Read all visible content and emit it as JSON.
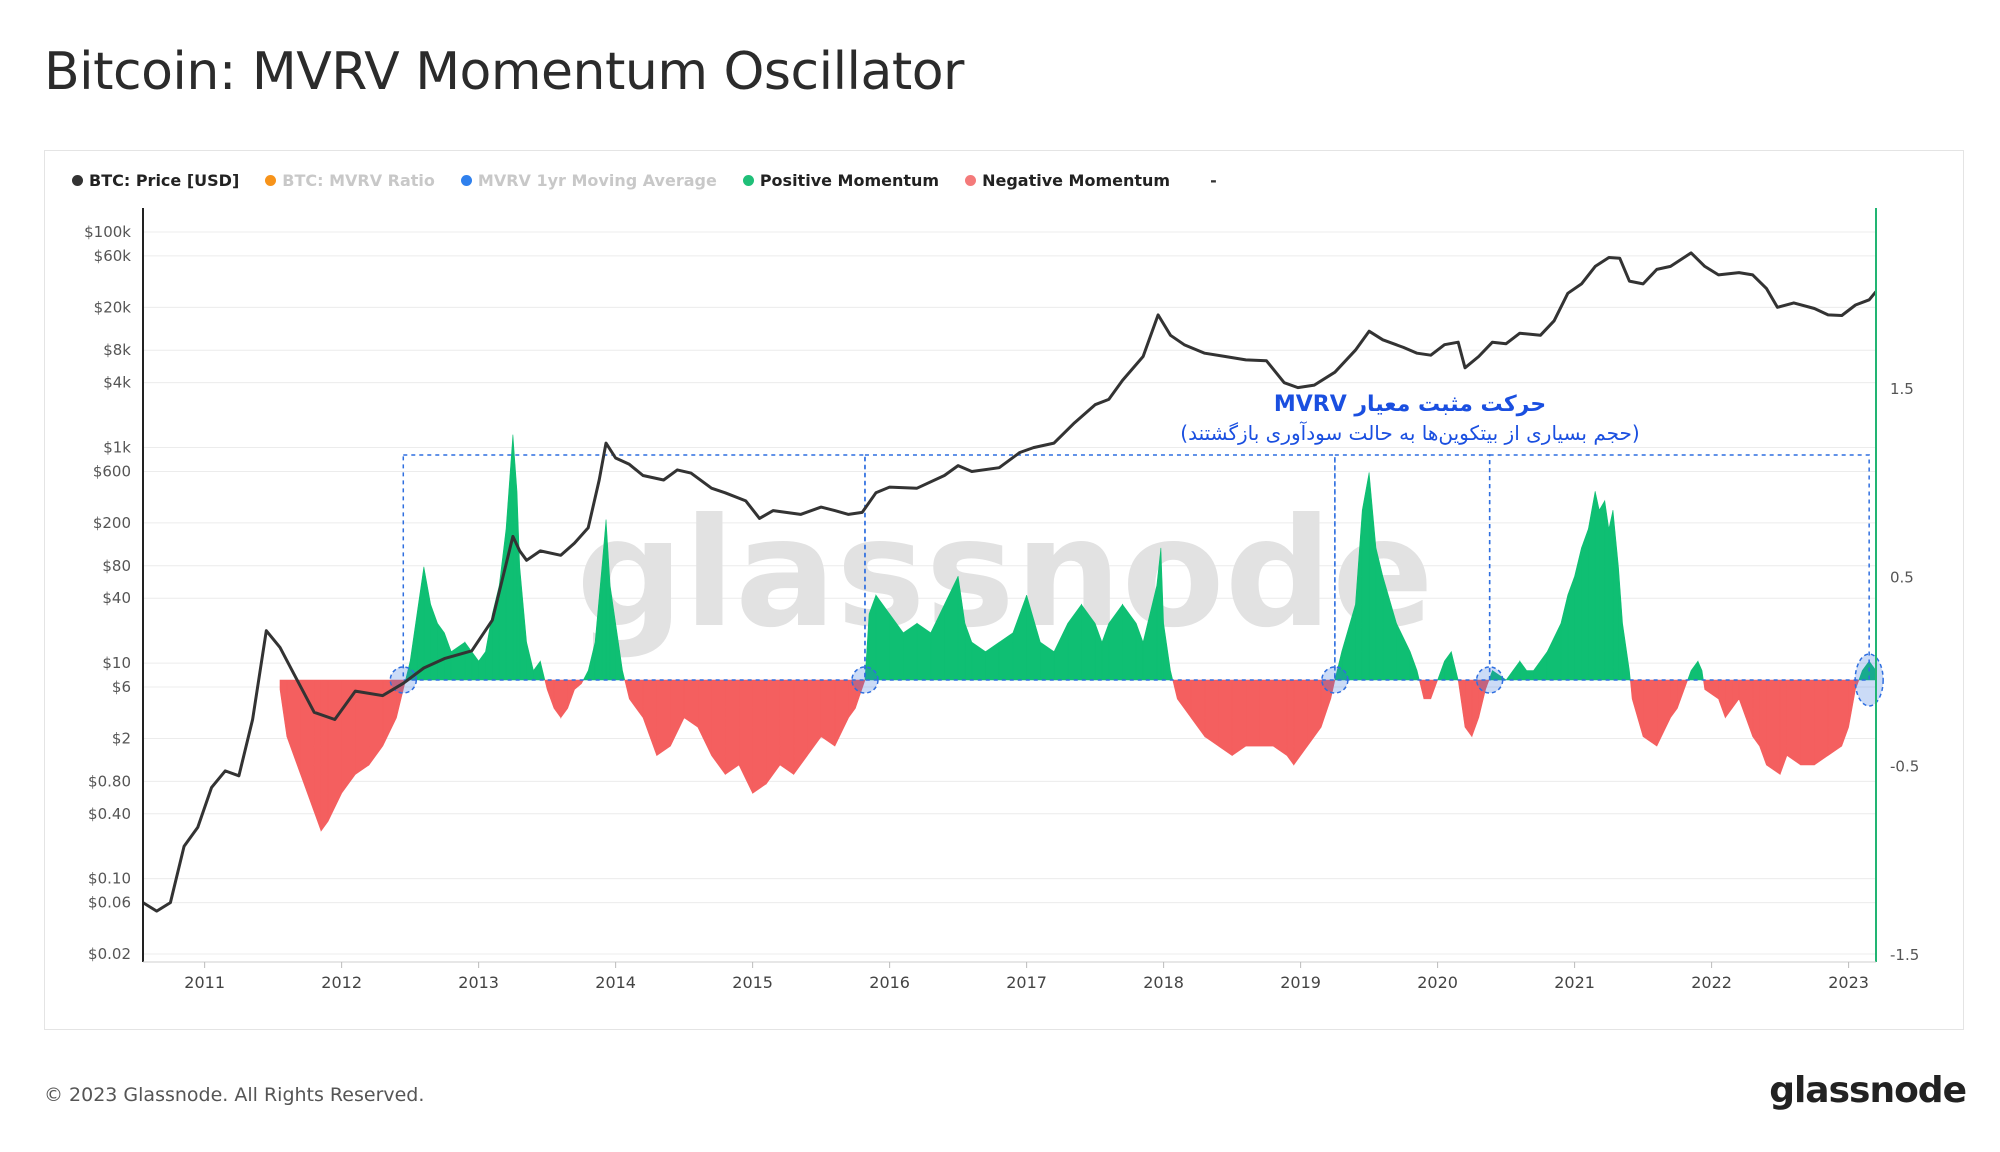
{
  "title": "Bitcoin: MVRV Momentum Oscillator",
  "footer": {
    "copyright": "© 2023 Glassnode. All Rights Reserved.",
    "logo": "glassnode"
  },
  "watermark": "glassnode",
  "annotation": {
    "title": "حرکت مثبت معیار MVRV",
    "subtitle": "(حجم بسیاری از بیتکوین‌ها به حالت سودآوری بازگشتند)"
  },
  "legend": [
    {
      "label": "BTC: Price [USD]",
      "color": "#333333",
      "text_color": "#222222"
    },
    {
      "label": "BTC: MVRV Ratio",
      "color": "#f7931a",
      "text_color": "#c8c8c8"
    },
    {
      "label": "MVRV 1yr Moving Average",
      "color": "#2f80ed",
      "text_color": "#c8c8c8"
    },
    {
      "label": "Positive Momentum",
      "color": "#1fbf78",
      "text_color": "#222222"
    },
    {
      "label": "Negative Momentum",
      "color": "#f47a7a",
      "text_color": "#222222"
    }
  ],
  "legend_trailing": "-",
  "colors": {
    "price": "#333333",
    "positive": "#0fbf73",
    "negative": "#f45f5f",
    "highlight": "#2f6fe0",
    "right_axis_line": "#22b573"
  },
  "chart_data": {
    "type": "area",
    "x_axis": {
      "ticks": [
        "2011",
        "2012",
        "2013",
        "2014",
        "2015",
        "2016",
        "2017",
        "2018",
        "2019",
        "2020",
        "2021",
        "2022",
        "2023"
      ],
      "range": [
        2010.55,
        2023.2
      ]
    },
    "left_axis": {
      "scale": "log",
      "ticks": [
        "$100k",
        "$60k",
        "$20k",
        "$8k",
        "$4k",
        "$1k",
        "$600",
        "$200",
        "$80",
        "$40",
        "$10",
        "$6",
        "$2",
        "$0.80",
        "$0.40",
        "$0.10",
        "$0.06",
        "$0.02"
      ],
      "values": [
        100000,
        60000,
        20000,
        8000,
        4000,
        1000,
        600,
        200,
        80,
        40,
        10,
        6,
        2,
        0.8,
        0.4,
        0.1,
        0.06,
        0.02
      ],
      "range": [
        0.02,
        100000
      ]
    },
    "right_axis": {
      "scale": "linear",
      "ticks": [
        "1.5",
        "0.5",
        "-0.5",
        "-1.5"
      ],
      "values": [
        1.5,
        0.5,
        -0.5,
        -1.5
      ],
      "range": [
        -1.5,
        2.5
      ]
    },
    "price_series": {
      "name": "BTC: Price [USD]",
      "points": [
        [
          2010.55,
          0.06
        ],
        [
          2010.65,
          0.05
        ],
        [
          2010.75,
          0.06
        ],
        [
          2010.85,
          0.2
        ],
        [
          2010.95,
          0.3
        ],
        [
          2011.05,
          0.7
        ],
        [
          2011.15,
          1.0
        ],
        [
          2011.25,
          0.9
        ],
        [
          2011.35,
          3.0
        ],
        [
          2011.45,
          20
        ],
        [
          2011.55,
          14
        ],
        [
          2011.65,
          8
        ],
        [
          2011.8,
          3.5
        ],
        [
          2011.95,
          3.0
        ],
        [
          2012.1,
          5.5
        ],
        [
          2012.3,
          5
        ],
        [
          2012.45,
          6.5
        ],
        [
          2012.6,
          9
        ],
        [
          2012.75,
          11
        ],
        [
          2012.95,
          13
        ],
        [
          2013.1,
          25
        ],
        [
          2013.25,
          150
        ],
        [
          2013.3,
          110
        ],
        [
          2013.35,
          90
        ],
        [
          2013.45,
          110
        ],
        [
          2013.6,
          100
        ],
        [
          2013.7,
          130
        ],
        [
          2013.8,
          180
        ],
        [
          2013.88,
          500
        ],
        [
          2013.93,
          1100
        ],
        [
          2014.0,
          800
        ],
        [
          2014.1,
          700
        ],
        [
          2014.2,
          550
        ],
        [
          2014.35,
          500
        ],
        [
          2014.45,
          620
        ],
        [
          2014.55,
          580
        ],
        [
          2014.7,
          420
        ],
        [
          2014.8,
          380
        ],
        [
          2014.95,
          320
        ],
        [
          2015.05,
          220
        ],
        [
          2015.15,
          260
        ],
        [
          2015.35,
          240
        ],
        [
          2015.5,
          280
        ],
        [
          2015.6,
          260
        ],
        [
          2015.7,
          240
        ],
        [
          2015.8,
          250
        ],
        [
          2015.9,
          380
        ],
        [
          2016.0,
          430
        ],
        [
          2016.2,
          420
        ],
        [
          2016.4,
          550
        ],
        [
          2016.5,
          680
        ],
        [
          2016.6,
          600
        ],
        [
          2016.8,
          650
        ],
        [
          2016.95,
          900
        ],
        [
          2017.05,
          1000
        ],
        [
          2017.2,
          1100
        ],
        [
          2017.35,
          1700
        ],
        [
          2017.5,
          2500
        ],
        [
          2017.6,
          2800
        ],
        [
          2017.7,
          4200
        ],
        [
          2017.85,
          7000
        ],
        [
          2017.96,
          17000
        ],
        [
          2018.05,
          11000
        ],
        [
          2018.15,
          9000
        ],
        [
          2018.3,
          7500
        ],
        [
          2018.45,
          7000
        ],
        [
          2018.6,
          6500
        ],
        [
          2018.75,
          6400
        ],
        [
          2018.88,
          4000
        ],
        [
          2018.98,
          3600
        ],
        [
          2019.1,
          3800
        ],
        [
          2019.25,
          5000
        ],
        [
          2019.4,
          8000
        ],
        [
          2019.5,
          12000
        ],
        [
          2019.6,
          10000
        ],
        [
          2019.75,
          8500
        ],
        [
          2019.85,
          7500
        ],
        [
          2019.95,
          7200
        ],
        [
          2020.05,
          9000
        ],
        [
          2020.15,
          9500
        ],
        [
          2020.2,
          5500
        ],
        [
          2020.3,
          7000
        ],
        [
          2020.4,
          9500
        ],
        [
          2020.5,
          9200
        ],
        [
          2020.6,
          11500
        ],
        [
          2020.75,
          11000
        ],
        [
          2020.85,
          15000
        ],
        [
          2020.95,
          27000
        ],
        [
          2021.05,
          33000
        ],
        [
          2021.15,
          48000
        ],
        [
          2021.25,
          58000
        ],
        [
          2021.33,
          57000
        ],
        [
          2021.4,
          35000
        ],
        [
          2021.5,
          33000
        ],
        [
          2021.6,
          45000
        ],
        [
          2021.7,
          48000
        ],
        [
          2021.85,
          64000
        ],
        [
          2021.95,
          48000
        ],
        [
          2022.05,
          40000
        ],
        [
          2022.2,
          42000
        ],
        [
          2022.3,
          40000
        ],
        [
          2022.4,
          30000
        ],
        [
          2022.48,
          20000
        ],
        [
          2022.6,
          22000
        ],
        [
          2022.75,
          19500
        ],
        [
          2022.85,
          17000
        ],
        [
          2022.95,
          16800
        ],
        [
          2023.05,
          21000
        ],
        [
          2023.15,
          23500
        ],
        [
          2023.2,
          28000
        ]
      ]
    },
    "momentum_series": {
      "name": "MVRV Momentum",
      "points": [
        [
          2011.55,
          -0.05
        ],
        [
          2011.6,
          -0.3
        ],
        [
          2011.7,
          -0.5
        ],
        [
          2011.8,
          -0.7
        ],
        [
          2011.85,
          -0.8
        ],
        [
          2011.9,
          -0.75
        ],
        [
          2012.0,
          -0.6
        ],
        [
          2012.1,
          -0.5
        ],
        [
          2012.2,
          -0.45
        ],
        [
          2012.3,
          -0.35
        ],
        [
          2012.4,
          -0.2
        ],
        [
          2012.45,
          -0.05
        ],
        [
          2012.5,
          0.1
        ],
        [
          2012.55,
          0.35
        ],
        [
          2012.6,
          0.6
        ],
        [
          2012.65,
          0.4
        ],
        [
          2012.7,
          0.3
        ],
        [
          2012.75,
          0.25
        ],
        [
          2012.8,
          0.15
        ],
        [
          2012.9,
          0.2
        ],
        [
          2012.95,
          0.15
        ],
        [
          2013.0,
          0.1
        ],
        [
          2013.05,
          0.15
        ],
        [
          2013.1,
          0.35
        ],
        [
          2013.15,
          0.5
        ],
        [
          2013.2,
          0.8
        ],
        [
          2013.25,
          1.3
        ],
        [
          2013.28,
          1.0
        ],
        [
          2013.3,
          0.6
        ],
        [
          2013.35,
          0.2
        ],
        [
          2013.4,
          0.05
        ],
        [
          2013.45,
          0.1
        ],
        [
          2013.5,
          -0.05
        ],
        [
          2013.55,
          -0.15
        ],
        [
          2013.6,
          -0.2
        ],
        [
          2013.65,
          -0.15
        ],
        [
          2013.7,
          -0.05
        ],
        [
          2013.75,
          -0.02
        ],
        [
          2013.8,
          0.05
        ],
        [
          2013.85,
          0.2
        ],
        [
          2013.9,
          0.6
        ],
        [
          2013.93,
          0.85
        ],
        [
          2013.96,
          0.5
        ],
        [
          2014.0,
          0.3
        ],
        [
          2014.05,
          0.05
        ],
        [
          2014.1,
          -0.1
        ],
        [
          2014.2,
          -0.2
        ],
        [
          2014.3,
          -0.4
        ],
        [
          2014.4,
          -0.35
        ],
        [
          2014.5,
          -0.2
        ],
        [
          2014.6,
          -0.25
        ],
        [
          2014.7,
          -0.4
        ],
        [
          2014.8,
          -0.5
        ],
        [
          2014.9,
          -0.45
        ],
        [
          2015.0,
          -0.6
        ],
        [
          2015.1,
          -0.55
        ],
        [
          2015.2,
          -0.45
        ],
        [
          2015.3,
          -0.5
        ],
        [
          2015.4,
          -0.4
        ],
        [
          2015.5,
          -0.3
        ],
        [
          2015.6,
          -0.35
        ],
        [
          2015.7,
          -0.2
        ],
        [
          2015.75,
          -0.15
        ],
        [
          2015.82,
          0.0
        ],
        [
          2015.85,
          0.35
        ],
        [
          2015.9,
          0.45
        ],
        [
          2016.0,
          0.35
        ],
        [
          2016.1,
          0.25
        ],
        [
          2016.2,
          0.3
        ],
        [
          2016.3,
          0.25
        ],
        [
          2016.4,
          0.4
        ],
        [
          2016.5,
          0.55
        ],
        [
          2016.55,
          0.3
        ],
        [
          2016.6,
          0.2
        ],
        [
          2016.7,
          0.15
        ],
        [
          2016.8,
          0.2
        ],
        [
          2016.9,
          0.25
        ],
        [
          2017.0,
          0.45
        ],
        [
          2017.1,
          0.2
        ],
        [
          2017.2,
          0.15
        ],
        [
          2017.3,
          0.3
        ],
        [
          2017.4,
          0.4
        ],
        [
          2017.5,
          0.3
        ],
        [
          2017.55,
          0.2
        ],
        [
          2017.6,
          0.3
        ],
        [
          2017.7,
          0.4
        ],
        [
          2017.8,
          0.3
        ],
        [
          2017.85,
          0.2
        ],
        [
          2017.95,
          0.5
        ],
        [
          2017.98,
          0.7
        ],
        [
          2018.0,
          0.3
        ],
        [
          2018.05,
          0.05
        ],
        [
          2018.1,
          -0.1
        ],
        [
          2018.2,
          -0.2
        ],
        [
          2018.3,
          -0.3
        ],
        [
          2018.4,
          -0.35
        ],
        [
          2018.5,
          -0.4
        ],
        [
          2018.6,
          -0.35
        ],
        [
          2018.7,
          -0.35
        ],
        [
          2018.8,
          -0.35
        ],
        [
          2018.9,
          -0.4
        ],
        [
          2018.95,
          -0.45
        ],
        [
          2019.05,
          -0.35
        ],
        [
          2019.15,
          -0.25
        ],
        [
          2019.22,
          -0.1
        ],
        [
          2019.25,
          0.0
        ],
        [
          2019.3,
          0.15
        ],
        [
          2019.4,
          0.4
        ],
        [
          2019.45,
          0.9
        ],
        [
          2019.5,
          1.1
        ],
        [
          2019.55,
          0.7
        ],
        [
          2019.6,
          0.55
        ],
        [
          2019.7,
          0.3
        ],
        [
          2019.8,
          0.15
        ],
        [
          2019.85,
          0.05
        ],
        [
          2019.9,
          -0.1
        ],
        [
          2019.95,
          -0.1
        ],
        [
          2020.0,
          0.0
        ],
        [
          2020.05,
          0.1
        ],
        [
          2020.1,
          0.15
        ],
        [
          2020.15,
          0.0
        ],
        [
          2020.2,
          -0.25
        ],
        [
          2020.25,
          -0.3
        ],
        [
          2020.3,
          -0.2
        ],
        [
          2020.35,
          -0.05
        ],
        [
          2020.4,
          0.05
        ],
        [
          2020.5,
          0.0
        ],
        [
          2020.55,
          0.05
        ],
        [
          2020.6,
          0.1
        ],
        [
          2020.65,
          0.05
        ],
        [
          2020.7,
          0.05
        ],
        [
          2020.8,
          0.15
        ],
        [
          2020.9,
          0.3
        ],
        [
          2020.95,
          0.45
        ],
        [
          2021.0,
          0.55
        ],
        [
          2021.05,
          0.7
        ],
        [
          2021.1,
          0.8
        ],
        [
          2021.15,
          1.0
        ],
        [
          2021.18,
          0.9
        ],
        [
          2021.22,
          0.95
        ],
        [
          2021.25,
          0.8
        ],
        [
          2021.28,
          0.9
        ],
        [
          2021.32,
          0.6
        ],
        [
          2021.35,
          0.3
        ],
        [
          2021.4,
          0.05
        ],
        [
          2021.42,
          -0.1
        ],
        [
          2021.5,
          -0.3
        ],
        [
          2021.6,
          -0.35
        ],
        [
          2021.7,
          -0.2
        ],
        [
          2021.75,
          -0.15
        ],
        [
          2021.8,
          -0.05
        ],
        [
          2021.85,
          0.05
        ],
        [
          2021.9,
          0.1
        ],
        [
          2021.93,
          0.05
        ],
        [
          2021.95,
          -0.05
        ],
        [
          2022.05,
          -0.1
        ],
        [
          2022.1,
          -0.2
        ],
        [
          2022.15,
          -0.15
        ],
        [
          2022.2,
          -0.1
        ],
        [
          2022.25,
          -0.2
        ],
        [
          2022.3,
          -0.3
        ],
        [
          2022.35,
          -0.35
        ],
        [
          2022.4,
          -0.45
        ],
        [
          2022.5,
          -0.5
        ],
        [
          2022.55,
          -0.4
        ],
        [
          2022.65,
          -0.45
        ],
        [
          2022.75,
          -0.45
        ],
        [
          2022.85,
          -0.4
        ],
        [
          2022.95,
          -0.35
        ],
        [
          2023.0,
          -0.25
        ],
        [
          2023.05,
          -0.05
        ],
        [
          2023.1,
          0.05
        ],
        [
          2023.15,
          0.1
        ],
        [
          2023.2,
          0.05
        ]
      ]
    },
    "highlight_regions": [
      [
        2012.45,
        2015.82
      ],
      [
        2015.82,
        2019.25
      ],
      [
        2019.25,
        2020.38
      ],
      [
        2020.38,
        2023.15
      ]
    ],
    "highlight_markers": [
      2012.45,
      2015.82,
      2019.25,
      2020.38,
      2023.15
    ]
  }
}
